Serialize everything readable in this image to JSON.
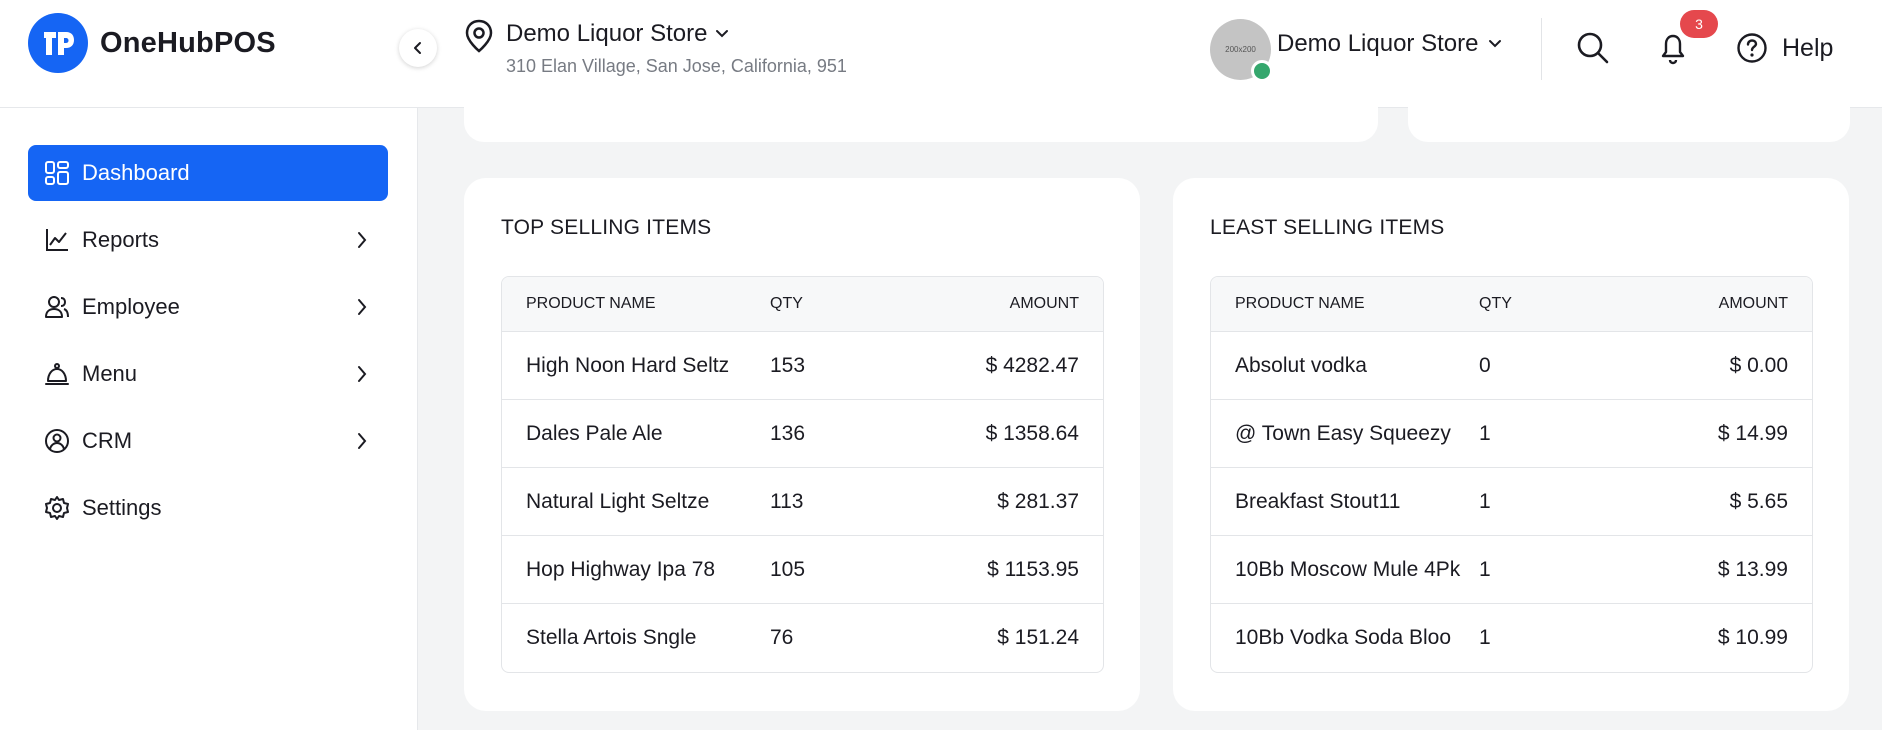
{
  "app": {
    "name": "OneHubPOS"
  },
  "store": {
    "name": "Demo Liquor Store",
    "address": "310 Elan Village, San Jose, California, 951"
  },
  "user": {
    "name": "Demo Liquor Store",
    "avatar_text": "200x200",
    "status_color": "#35a76d"
  },
  "notifications": {
    "count": "3"
  },
  "help_label": "Help",
  "colors": {
    "accent": "#1565f4",
    "badge": "#e5484d"
  },
  "sidebar": {
    "items": [
      {
        "label": "Dashboard",
        "icon": "dashboard-icon",
        "active": true
      },
      {
        "label": "Reports",
        "icon": "chart-line-icon",
        "has_submenu": true
      },
      {
        "label": "Employee",
        "icon": "users-icon",
        "has_submenu": true
      },
      {
        "label": "Menu",
        "icon": "cloche-icon",
        "has_submenu": true
      },
      {
        "label": "CRM",
        "icon": "crm-icon",
        "has_submenu": true
      },
      {
        "label": "Settings",
        "icon": "gear-icon"
      }
    ]
  },
  "top_selling": {
    "title": "TOP SELLING ITEMS",
    "columns": [
      "PRODUCT NAME",
      "QTY",
      "AMOUNT"
    ],
    "rows": [
      {
        "name": "High Noon Hard Seltz",
        "qty": "153",
        "amount": "$ 4282.47"
      },
      {
        "name": "Dales Pale Ale",
        "qty": "136",
        "amount": "$ 1358.64"
      },
      {
        "name": "Natural Light Seltze",
        "qty": "113",
        "amount": "$ 281.37"
      },
      {
        "name": "Hop Highway Ipa 78",
        "qty": "105",
        "amount": "$ 1153.95"
      },
      {
        "name": "Stella Artois Sngle",
        "qty": "76",
        "amount": "$ 151.24"
      }
    ]
  },
  "least_selling": {
    "title": "LEAST SELLING ITEMS",
    "columns": [
      "PRODUCT NAME",
      "QTY",
      "AMOUNT"
    ],
    "rows": [
      {
        "name": "Absolut vodka",
        "qty": "0",
        "amount": "$ 0.00"
      },
      {
        "name": "@ Town Easy Squeezy",
        "qty": "1",
        "amount": "$ 14.99"
      },
      {
        "name": "Breakfast Stout11",
        "qty": "1",
        "amount": "$ 5.65"
      },
      {
        "name": "10Bb Moscow Mule 4Pk",
        "qty": "1",
        "amount": "$ 13.99"
      },
      {
        "name": "10Bb Vodka Soda Bloo",
        "qty": "1",
        "amount": "$ 10.99"
      }
    ]
  }
}
